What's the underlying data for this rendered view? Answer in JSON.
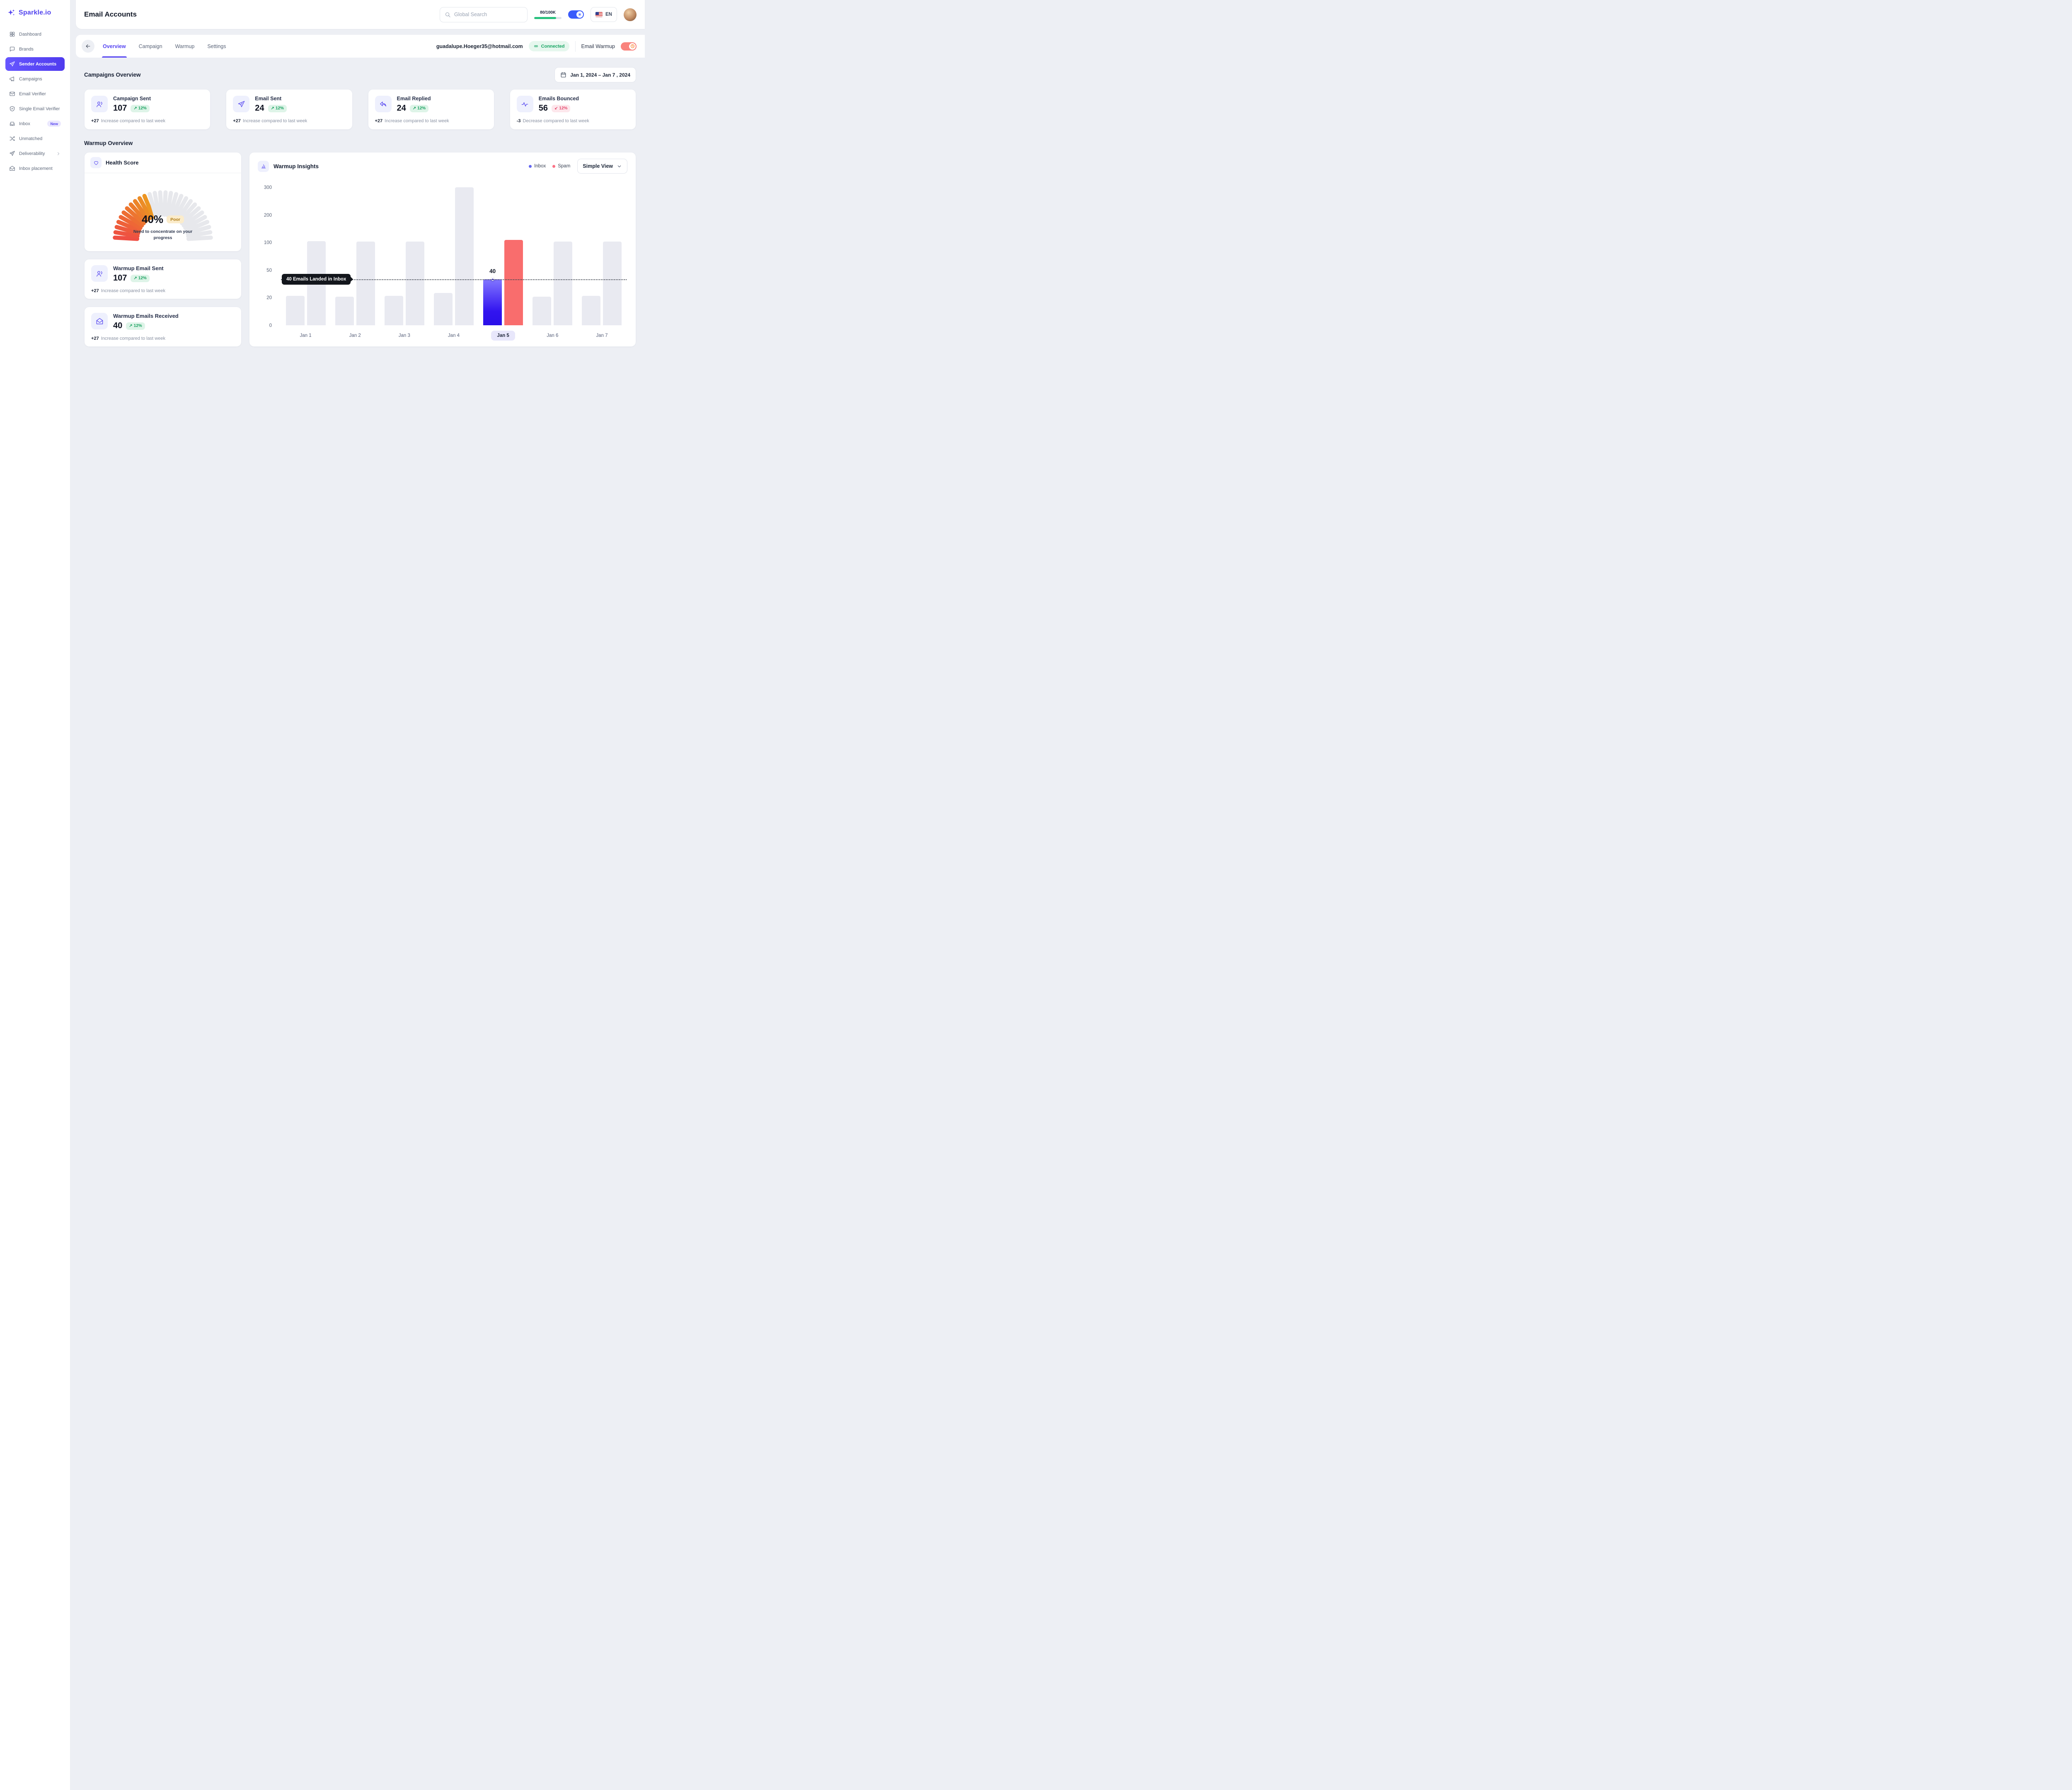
{
  "brand": {
    "name": "Sparkle.io"
  },
  "sidebar": {
    "items": [
      {
        "label": "Dashboard",
        "icon": "grid-icon"
      },
      {
        "label": "Brands",
        "icon": "chat-icon"
      },
      {
        "label": "Sender Accounts",
        "icon": "paper-plane-icon",
        "active": true
      },
      {
        "label": "Campaigns",
        "icon": "megaphone-icon"
      },
      {
        "label": "Email Verifier",
        "icon": "mail-icon"
      },
      {
        "label": "Single Email Verifier",
        "icon": "shield-check-icon"
      },
      {
        "label": "Inbox",
        "icon": "inbox-icon",
        "badge": "New"
      },
      {
        "label": "Unmatched",
        "icon": "shuffle-icon"
      },
      {
        "label": "Deliverability",
        "icon": "paper-plane-icon",
        "has_submenu": true
      },
      {
        "label": "Inbox placement",
        "icon": "mail-open-icon"
      }
    ]
  },
  "header": {
    "title": "Email Accounts",
    "search_placeholder": "Global Search",
    "credits": "80/100K",
    "credits_percent": 80,
    "language": "EN"
  },
  "tabbar": {
    "tabs": [
      {
        "label": "Overview",
        "active": true
      },
      {
        "label": "Campaign",
        "active": false
      },
      {
        "label": "Warmup",
        "active": false
      },
      {
        "label": "Settings",
        "active": false
      }
    ],
    "account_email": "guadalupe.Hoeger35@hotmail.com",
    "connection_badge": "Connected",
    "warmup_toggle_label": "Email Warmup",
    "warmup_toggle_on": true
  },
  "campaigns_overview": {
    "heading": "Campaigns Overview",
    "date_range": "Jan 1, 2024 – Jan 7 , 2024",
    "cards": [
      {
        "title": "Campaign Sent",
        "value": "107",
        "delta": "12%",
        "trend": "up",
        "change": "+27",
        "change_note": "Increase compared to last week",
        "icon": "campaign-icon"
      },
      {
        "title": "Email Sent",
        "value": "24",
        "delta": "12%",
        "trend": "up",
        "change": "+27",
        "change_note": "Increase compared to last week",
        "icon": "paper-plane-icon"
      },
      {
        "title": "Email Replied",
        "value": "24",
        "delta": "12%",
        "trend": "up",
        "change": "+27",
        "change_note": "Increase compared to last week",
        "icon": "reply-icon"
      },
      {
        "title": "Emails Bounced",
        "value": "56",
        "delta": "12%",
        "trend": "down",
        "change": "-3",
        "change_note": "Decrease compared to last week",
        "icon": "activity-icon"
      }
    ]
  },
  "warmup_overview": {
    "heading": "Warmup Overview",
    "health_score": {
      "title": "Health Score",
      "percent": 40,
      "value": "40%",
      "status": "Poor",
      "note": "Need to concentrate on your progress"
    },
    "cards": [
      {
        "title": "Warmup Email Sent",
        "value": "107",
        "delta": "12%",
        "trend": "up",
        "change": "+27",
        "change_note": "Increase compared to last week",
        "icon": "campaign-icon"
      },
      {
        "title": "Warmup Emails Received",
        "value": "40",
        "delta": "12%",
        "trend": "up",
        "change": "+27",
        "change_note": "Increase compared to last week",
        "icon": "inbox-icon"
      }
    ]
  },
  "chart_data": {
    "type": "bar",
    "title": "Warmup Insights",
    "legend": [
      {
        "label": "Inbox",
        "color": "#6366f1"
      },
      {
        "label": "Spam",
        "color": "#fb7185"
      }
    ],
    "legend_position": "top-right",
    "view_dropdown": "Simple View",
    "categories": [
      "Jan 1",
      "Jan 2",
      "Jan 3",
      "Jan 4",
      "Jan 5",
      "Jan 6",
      "Jan 7"
    ],
    "yticks": [
      0,
      20,
      50,
      100,
      200,
      300
    ],
    "grid": false,
    "series": [
      {
        "name": "Inbox",
        "values": [
          22,
          21,
          22,
          25,
          40,
          21,
          22
        ]
      },
      {
        "name": "Spam",
        "values": [
          105,
          103,
          103,
          300,
          110,
          103,
          103
        ]
      }
    ],
    "bar_default_color": "#e9eaf1",
    "highlight": {
      "category": "Jan 5",
      "inbox_value": 40,
      "value_label": "40",
      "tooltip": "40 Emails Landed in Inbox",
      "inbox_bar_colors": [
        "#8276ff",
        "#2a0fe8"
      ],
      "spam_bar_color": "#f96d6d"
    }
  }
}
